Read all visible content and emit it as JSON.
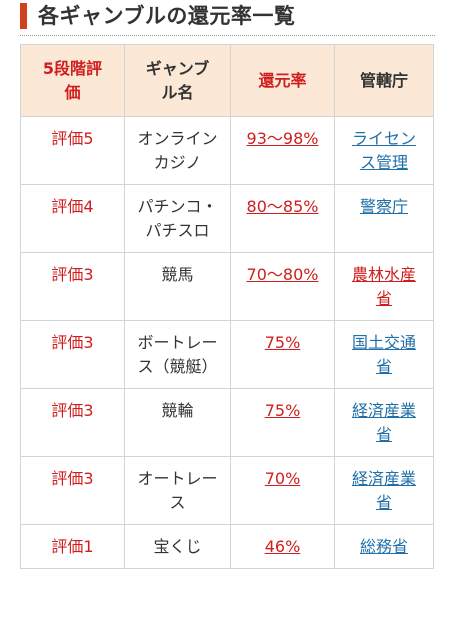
{
  "header": {
    "title": "各ギャンブルの還元率一覧",
    "accent_color": "#d0421b"
  },
  "colors": {
    "header_bg": "#fce8d7",
    "grade_text": "#d01e1e",
    "rate_link": "#d01e1e",
    "agency_link_blue": "#1f6fa8",
    "agency_link_red": "#d01e1e",
    "border": "#d4d4d4"
  },
  "table": {
    "headers": {
      "grade": "5段階評価",
      "gamble": "ギャンブル名",
      "rate": "還元率",
      "agency": "管轄庁"
    },
    "rows": [
      {
        "grade": "評価5",
        "gamble": "オンラインカジノ",
        "rate": "93～98%",
        "agency": "ライセンス管理",
        "agency_color": "blue"
      },
      {
        "grade": "評価4",
        "gamble": "パチンコ・パチスロ",
        "rate": "80～85%",
        "agency": "警察庁",
        "agency_color": "blue"
      },
      {
        "grade": "評価3",
        "gamble": "競馬",
        "rate": "70～80%",
        "agency": "農林水産省",
        "agency_color": "red"
      },
      {
        "grade": "評価3",
        "gamble": "ボートレース（競艇）",
        "rate": "75%",
        "agency": "国土交通省",
        "agency_color": "blue"
      },
      {
        "grade": "評価3",
        "gamble": "競輪",
        "rate": "75%",
        "agency": "経済産業省",
        "agency_color": "blue"
      },
      {
        "grade": "評価3",
        "gamble": "オートレース",
        "rate": "70%",
        "agency": "経済産業省",
        "agency_color": "blue"
      },
      {
        "grade": "評価1",
        "gamble": "宝くじ",
        "rate": "46%",
        "agency": "総務省",
        "agency_color": "blue"
      }
    ]
  }
}
